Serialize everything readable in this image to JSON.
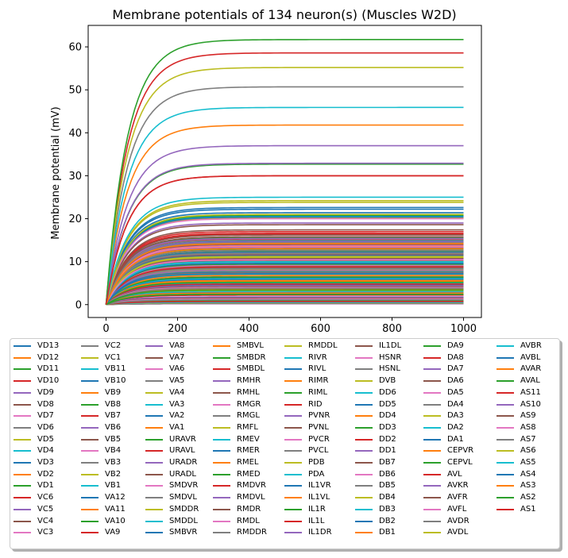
{
  "chart_data": {
    "type": "line",
    "title": "Membrane potentials of 134 neuron(s) (Muscles W2D)",
    "xlabel": "",
    "ylabel": "Membrane potential (mV)",
    "xlim": [
      -50,
      1050
    ],
    "ylim": [
      -3,
      65
    ],
    "xticks": [
      0,
      200,
      400,
      600,
      800,
      1000
    ],
    "yticks": [
      0,
      10,
      20,
      30,
      40,
      50,
      60
    ],
    "grid": false,
    "legend_position": "below",
    "legend_columns": 8,
    "curve": {
      "x_start": 0,
      "x_end": 1000,
      "y_start": 0,
      "shape": "exponential rise to plateau",
      "time_constant": 60
    },
    "palette": [
      "#1f77b4",
      "#ff7f0e",
      "#2ca02c",
      "#d62728",
      "#9467bd",
      "#8c564b",
      "#e377c2",
      "#7f7f7f",
      "#bcbd22",
      "#17becf"
    ],
    "series": [
      {
        "name": "VD13",
        "plateau": 22.6
      },
      {
        "name": "VD12",
        "plateau": 14.2
      },
      {
        "name": "VD11",
        "plateau": 12.4
      },
      {
        "name": "VD10",
        "plateau": 11.6
      },
      {
        "name": "VD9",
        "plateau": 9.5
      },
      {
        "name": "VD8",
        "plateau": 8.6
      },
      {
        "name": "VD7",
        "plateau": 7.5
      },
      {
        "name": "VD6",
        "plateau": 6.5
      },
      {
        "name": "VD5",
        "plateau": 5.5
      },
      {
        "name": "VD4",
        "plateau": 5.0
      },
      {
        "name": "VD3",
        "plateau": 4.6
      },
      {
        "name": "VD2",
        "plateau": 3.6
      },
      {
        "name": "VD1",
        "plateau": 2.6
      },
      {
        "name": "VC6",
        "plateau": 2.2
      },
      {
        "name": "VC5",
        "plateau": 1.8
      },
      {
        "name": "VC4",
        "plateau": 1.4
      },
      {
        "name": "VC3",
        "plateau": 1.0
      },
      {
        "name": "VC2",
        "plateau": 0.8
      },
      {
        "name": "VC1",
        "plateau": 0.6
      },
      {
        "name": "VB11",
        "plateau": 20.6
      },
      {
        "name": "VB10",
        "plateau": 14.8
      },
      {
        "name": "VB9",
        "plateau": 14.0
      },
      {
        "name": "VB8",
        "plateau": 15.6
      },
      {
        "name": "VB7",
        "plateau": 11.2
      },
      {
        "name": "VB6",
        "plateau": 10.6
      },
      {
        "name": "VB5",
        "plateau": 10.2
      },
      {
        "name": "VB4",
        "plateau": 9.8
      },
      {
        "name": "VB3",
        "plateau": 9.0
      },
      {
        "name": "VB2",
        "plateau": 8.2
      },
      {
        "name": "VB1",
        "plateau": 7.0
      },
      {
        "name": "VA12",
        "plateau": 21.4
      },
      {
        "name": "VA11",
        "plateau": 13.6
      },
      {
        "name": "VA10",
        "plateau": 12.8
      },
      {
        "name": "VA9",
        "plateau": 16.6
      },
      {
        "name": "VA8",
        "plateau": 12.0
      },
      {
        "name": "VA7",
        "plateau": 10.8
      },
      {
        "name": "VA6",
        "plateau": 9.2
      },
      {
        "name": "VA5",
        "plateau": 8.4
      },
      {
        "name": "VA4",
        "plateau": 7.8
      },
      {
        "name": "VA3",
        "plateau": 7.2
      },
      {
        "name": "VA2",
        "plateau": 6.2
      },
      {
        "name": "VA1",
        "plateau": 5.4
      },
      {
        "name": "URAVR",
        "plateau": 0.2
      },
      {
        "name": "URAVL",
        "plateau": 0.3
      },
      {
        "name": "URADR",
        "plateau": 0.2
      },
      {
        "name": "URADL",
        "plateau": 0.3
      },
      {
        "name": "SMDVR",
        "plateau": 0.4
      },
      {
        "name": "SMDVL",
        "plateau": 0.5
      },
      {
        "name": "SMDDR",
        "plateau": 0.4
      },
      {
        "name": "SMDDL",
        "plateau": 0.5
      },
      {
        "name": "SMBVR",
        "plateau": 22.2
      },
      {
        "name": "SMBVL",
        "plateau": 1.2
      },
      {
        "name": "SMBDR",
        "plateau": 0.9
      },
      {
        "name": "SMBDL",
        "plateau": 0.7
      },
      {
        "name": "RMHR",
        "plateau": 1.6
      },
      {
        "name": "RMHL",
        "plateau": 1.5
      },
      {
        "name": "RMGR",
        "plateau": 1.3
      },
      {
        "name": "RMGL",
        "plateau": 1.1
      },
      {
        "name": "RMFL",
        "plateau": 3.2
      },
      {
        "name": "RMEV",
        "plateau": 3.0
      },
      {
        "name": "RMER",
        "plateau": 2.8
      },
      {
        "name": "RMEL",
        "plateau": 2.7
      },
      {
        "name": "RMED",
        "plateau": 2.4
      },
      {
        "name": "RMDVR",
        "plateau": 17.0
      },
      {
        "name": "RMDVL",
        "plateau": 14.6
      },
      {
        "name": "RMDR",
        "plateau": 13.2
      },
      {
        "name": "RMDL",
        "plateau": 12.6
      },
      {
        "name": "RMDDR",
        "plateau": 11.8
      },
      {
        "name": "RMDDL",
        "plateau": 24.2
      },
      {
        "name": "RIVR",
        "plateau": 12.2
      },
      {
        "name": "RIVL",
        "plateau": 11.4
      },
      {
        "name": "RIMR",
        "plateau": 6.8
      },
      {
        "name": "RIML",
        "plateau": 6.4
      },
      {
        "name": "RID",
        "plateau": 15.2
      },
      {
        "name": "PVNR",
        "plateau": 19.0
      },
      {
        "name": "PVNL",
        "plateau": 18.6
      },
      {
        "name": "PVCR",
        "plateau": 15.0
      },
      {
        "name": "PVCL",
        "plateau": 14.4
      },
      {
        "name": "PDB",
        "plateau": 20.2
      },
      {
        "name": "PDA",
        "plateau": 6.0
      },
      {
        "name": "IL1VR",
        "plateau": 5.8
      },
      {
        "name": "IL1VL",
        "plateau": 5.6
      },
      {
        "name": "IL1R",
        "plateau": 5.2
      },
      {
        "name": "IL1L",
        "plateau": 4.8
      },
      {
        "name": "IL1DR",
        "plateau": 4.4
      },
      {
        "name": "IL1DL",
        "plateau": 4.2
      },
      {
        "name": "HSNR",
        "plateau": 4.0
      },
      {
        "name": "HSNL",
        "plateau": 3.8
      },
      {
        "name": "DVB",
        "plateau": 23.8
      },
      {
        "name": "DD6",
        "plateau": 13.0
      },
      {
        "name": "DD5",
        "plateau": 12.2
      },
      {
        "name": "DD4",
        "plateau": 10.4
      },
      {
        "name": "DD3",
        "plateau": 9.4
      },
      {
        "name": "DD2",
        "plateau": 8.8
      },
      {
        "name": "DD1",
        "plateau": 8.0
      },
      {
        "name": "DB7",
        "plateau": 17.4
      },
      {
        "name": "DB6",
        "plateau": 13.8
      },
      {
        "name": "DB5",
        "plateau": 12.6
      },
      {
        "name": "DB4",
        "plateau": 11.0
      },
      {
        "name": "DB3",
        "plateau": 10.0
      },
      {
        "name": "DB2",
        "plateau": 9.6
      },
      {
        "name": "DB1",
        "plateau": 7.4
      },
      {
        "name": "DA9",
        "plateau": 20.8
      },
      {
        "name": "DA8",
        "plateau": 16.4
      },
      {
        "name": "DA7",
        "plateau": 15.4
      },
      {
        "name": "DA6",
        "plateau": 14.0
      },
      {
        "name": "DA5",
        "plateau": 13.4
      },
      {
        "name": "DA4",
        "plateau": 12.0
      },
      {
        "name": "DA3",
        "plateau": 11.2
      },
      {
        "name": "DA2",
        "plateau": 9.9
      },
      {
        "name": "DA1",
        "plateau": 7.6
      },
      {
        "name": "CEPVR",
        "plateau": 41.8
      },
      {
        "name": "CEPVL",
        "plateau": 32.7
      },
      {
        "name": "AVL",
        "plateau": 58.6
      },
      {
        "name": "AVKR",
        "plateau": 37.0
      },
      {
        "name": "AVFR",
        "plateau": 15.8
      },
      {
        "name": "AVFL",
        "plateau": 10.4
      },
      {
        "name": "AVDR",
        "plateau": 50.7
      },
      {
        "name": "AVDL",
        "plateau": 55.2
      },
      {
        "name": "AVBR",
        "plateau": 45.9
      },
      {
        "name": "AVBL",
        "plateau": 20.4
      },
      {
        "name": "AVAR",
        "plateau": 14.2
      },
      {
        "name": "AVAL",
        "plateau": 61.7
      },
      {
        "name": "AS11",
        "plateau": 30.0
      },
      {
        "name": "AS10",
        "plateau": 32.9
      },
      {
        "name": "AS9",
        "plateau": 16.2
      },
      {
        "name": "AS8",
        "plateau": 20.0
      },
      {
        "name": "AS7",
        "plateau": 15.0
      },
      {
        "name": "AS6",
        "plateau": 21.0
      },
      {
        "name": "AS5",
        "plateau": 25.0
      },
      {
        "name": "AS4",
        "plateau": 7.2
      },
      {
        "name": "AS3",
        "plateau": 13.0
      },
      {
        "name": "AS2",
        "plateau": 3.4
      },
      {
        "name": "AS1",
        "plateau": 30.0
      }
    ]
  }
}
